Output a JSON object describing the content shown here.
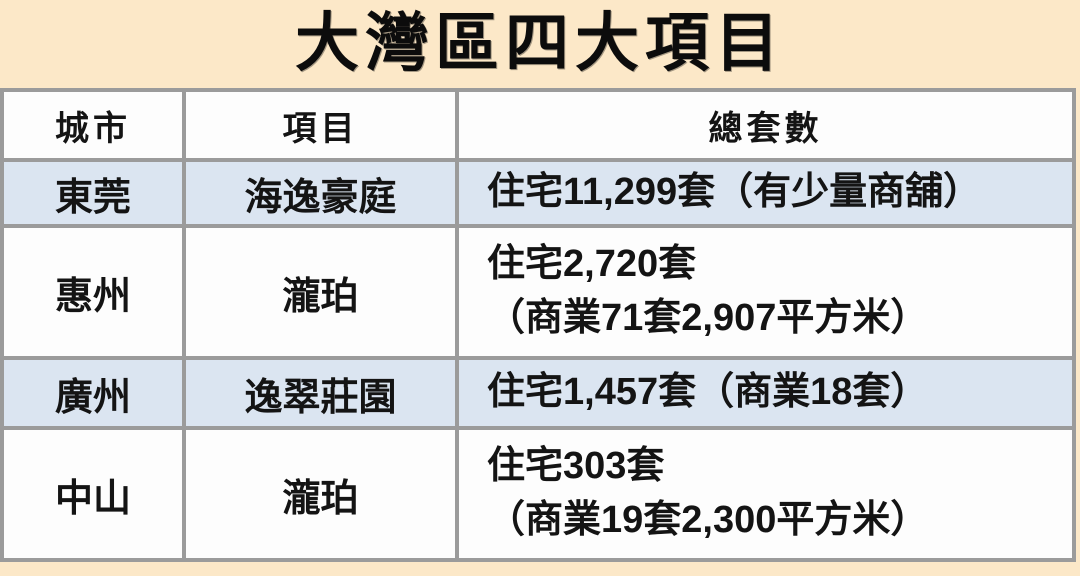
{
  "title": "大灣區四大項目",
  "table": {
    "columns": [
      {
        "label": "城市"
      },
      {
        "label": "項目"
      },
      {
        "label": "總套數"
      }
    ],
    "rows": [
      {
        "city": "東莞",
        "project": "海逸豪庭",
        "units_line1": "住宅11,299套（有少量商舖）",
        "units_line2": ""
      },
      {
        "city": "惠州",
        "project": "瀧珀",
        "units_line1": "住宅2,720套",
        "units_line2": "（商業71套2,907平方米）"
      },
      {
        "city": "廣州",
        "project": "逸翠莊園",
        "units_line1": "住宅1,457套（商業18套）",
        "units_line2": ""
      },
      {
        "city": "中山",
        "project": "瀧珀",
        "units_line1": "住宅303套",
        "units_line2": "（商業19套2,300平方米）"
      }
    ]
  },
  "colors": {
    "page_background": "#FCE8C8",
    "table_border": "#9B9B9B",
    "header_text": "#3A8FBE",
    "stripe_row_background": "#DBE5F1",
    "plain_row_background": "#FDFDFD",
    "body_text": "#141414",
    "title_text": "#0C0C0C"
  }
}
